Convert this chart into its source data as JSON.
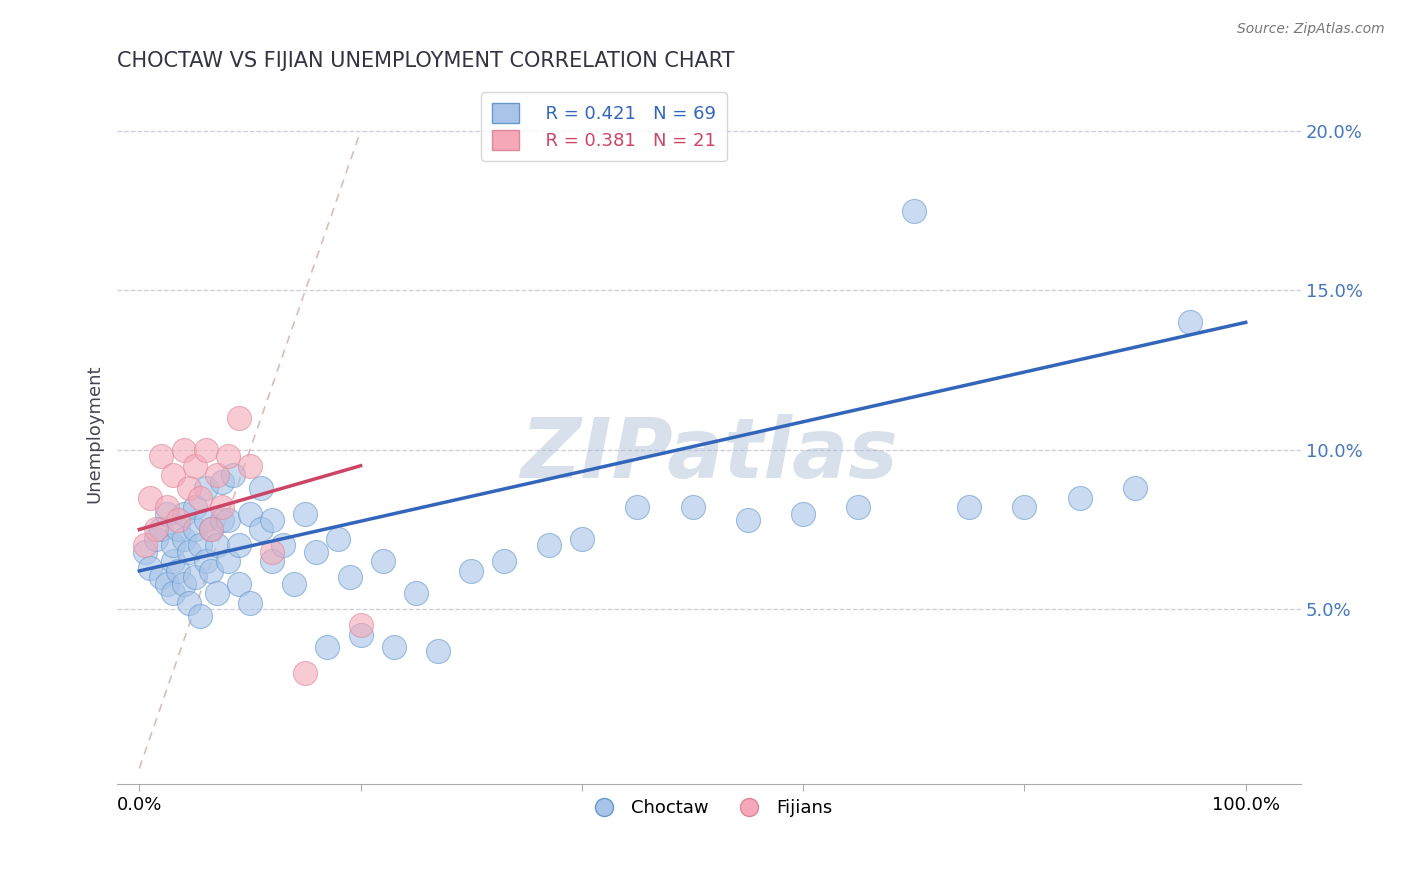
{
  "title": "CHOCTAW VS FIJIAN UNEMPLOYMENT CORRELATION CHART",
  "source_text": "Source: ZipAtlas.com",
  "ylabel": "Unemployment",
  "xlim": [
    -0.02,
    1.05
  ],
  "ylim": [
    -0.005,
    0.215
  ],
  "yticks": [
    0.05,
    0.1,
    0.15,
    0.2
  ],
  "ytick_labels": [
    "5.0%",
    "10.0%",
    "15.0%",
    "20.0%"
  ],
  "xtick_positions": [
    0.0,
    0.2,
    0.4,
    0.6,
    0.8,
    1.0
  ],
  "xtick_labels_outer": [
    "0.0%",
    "",
    "",
    "",
    "",
    "100.0%"
  ],
  "choctaw_R": 0.421,
  "choctaw_N": 69,
  "fijian_R": 0.381,
  "fijian_N": 21,
  "blue_fill": "#A8C4E8",
  "pink_fill": "#F4A8B8",
  "blue_edge": "#6699CC",
  "pink_edge": "#DD8899",
  "blue_line": "#3366BB",
  "pink_line": "#CC4466",
  "diag_color": "#DDBBBB",
  "watermark": "ZIPatlas",
  "watermark_color": "#AABBD4",
  "background_color": "#FFFFFF",
  "grid_color": "#CCCCDD",
  "ytick_color": "#4477BB",
  "title_color": "#333344",
  "choctaw_x": [
    0.005,
    0.01,
    0.015,
    0.02,
    0.02,
    0.025,
    0.025,
    0.03,
    0.03,
    0.03,
    0.035,
    0.035,
    0.04,
    0.04,
    0.04,
    0.045,
    0.045,
    0.05,
    0.05,
    0.05,
    0.055,
    0.055,
    0.06,
    0.06,
    0.06,
    0.065,
    0.065,
    0.07,
    0.07,
    0.075,
    0.075,
    0.08,
    0.08,
    0.085,
    0.09,
    0.09,
    0.1,
    0.1,
    0.11,
    0.11,
    0.12,
    0.12,
    0.13,
    0.14,
    0.15,
    0.16,
    0.17,
    0.18,
    0.19,
    0.2,
    0.22,
    0.23,
    0.25,
    0.27,
    0.3,
    0.33,
    0.37,
    0.4,
    0.45,
    0.5,
    0.55,
    0.6,
    0.65,
    0.7,
    0.75,
    0.8,
    0.85,
    0.9,
    0.95
  ],
  "choctaw_y": [
    0.068,
    0.063,
    0.072,
    0.06,
    0.075,
    0.058,
    0.08,
    0.065,
    0.07,
    0.055,
    0.075,
    0.062,
    0.072,
    0.058,
    0.08,
    0.068,
    0.052,
    0.075,
    0.06,
    0.082,
    0.07,
    0.048,
    0.078,
    0.065,
    0.088,
    0.062,
    0.075,
    0.07,
    0.055,
    0.078,
    0.09,
    0.065,
    0.078,
    0.092,
    0.07,
    0.058,
    0.08,
    0.052,
    0.075,
    0.088,
    0.065,
    0.078,
    0.07,
    0.058,
    0.08,
    0.068,
    0.038,
    0.072,
    0.06,
    0.042,
    0.065,
    0.038,
    0.055,
    0.037,
    0.062,
    0.065,
    0.07,
    0.072,
    0.082,
    0.082,
    0.078,
    0.08,
    0.082,
    0.175,
    0.082,
    0.082,
    0.085,
    0.088,
    0.14
  ],
  "fijian_x": [
    0.005,
    0.01,
    0.015,
    0.02,
    0.025,
    0.03,
    0.035,
    0.04,
    0.045,
    0.05,
    0.055,
    0.06,
    0.065,
    0.07,
    0.075,
    0.08,
    0.09,
    0.1,
    0.12,
    0.15,
    0.2
  ],
  "fijian_y": [
    0.07,
    0.085,
    0.075,
    0.098,
    0.082,
    0.092,
    0.078,
    0.1,
    0.088,
    0.095,
    0.085,
    0.1,
    0.075,
    0.092,
    0.082,
    0.098,
    0.11,
    0.095,
    0.068,
    0.03,
    0.045
  ],
  "blue_line_x0": 0.0,
  "blue_line_y0": 0.062,
  "blue_line_x1": 1.0,
  "blue_line_y1": 0.14,
  "pink_line_x0": 0.0,
  "pink_line_y0": 0.075,
  "pink_line_x1": 0.2,
  "pink_line_y1": 0.095
}
